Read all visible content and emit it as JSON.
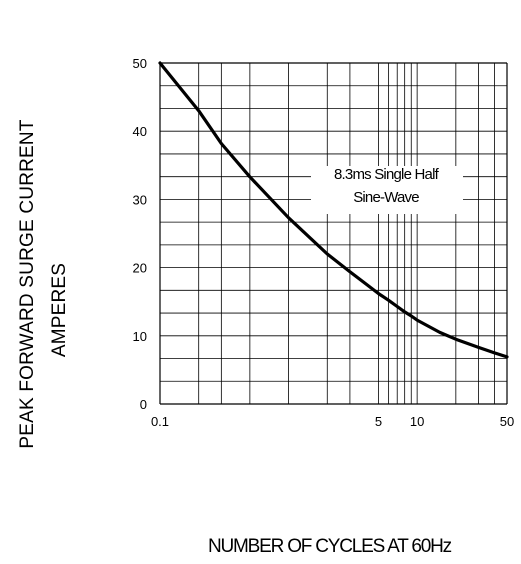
{
  "chart_data": {
    "type": "line",
    "xlabel": "NUMBER OF CYCLES AT 60Hz",
    "ylabel": [
      "PEAK FORWARD SURGE CURRENT",
      "AMPERES"
    ],
    "annotation": [
      "8.3ms Single Half",
      "Sine-Wave"
    ],
    "x_ticks": [
      {
        "value": 0.1,
        "label": "0.1"
      },
      {
        "value": 5,
        "label": "5"
      },
      {
        "value": 10,
        "label": "10"
      },
      {
        "value": 50,
        "label": "50"
      }
    ],
    "y_ticks": [
      {
        "value": 0,
        "label": "0"
      },
      {
        "value": 10,
        "label": "10"
      },
      {
        "value": 20,
        "label": "20"
      },
      {
        "value": 30,
        "label": "30"
      },
      {
        "value": 40,
        "label": "40"
      },
      {
        "value": 50,
        "label": "50"
      }
    ],
    "ylim": [
      0,
      50
    ],
    "grid": true,
    "series": [
      {
        "x": [
          0.1,
          0.2,
          0.3,
          0.5,
          1,
          2,
          3,
          4,
          5,
          6,
          7,
          8,
          9,
          10,
          15,
          20,
          30,
          40,
          50
        ],
        "values": [
          50,
          43,
          38.2,
          33.3,
          27.3,
          22,
          19.4,
          17.6,
          16.2,
          15.2,
          14.3,
          13.5,
          12.9,
          12.3,
          10.5,
          9.5,
          8.3,
          7.5,
          6.9
        ]
      }
    ]
  }
}
